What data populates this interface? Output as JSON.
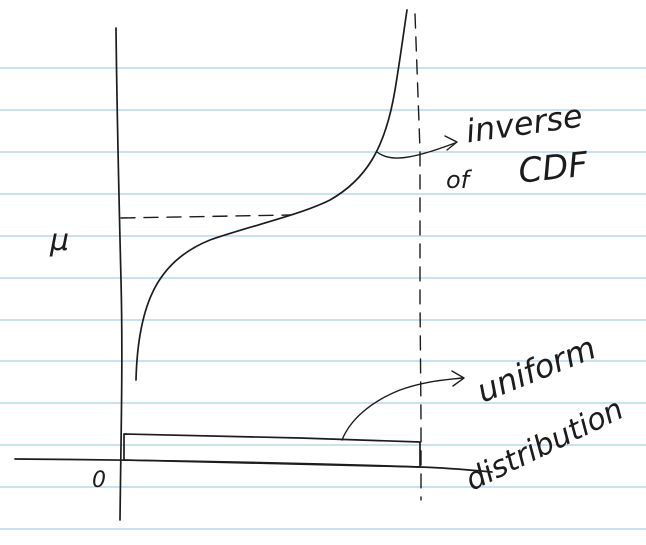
{
  "labels": {
    "y_mark": "μ",
    "origin": "0",
    "inverse_line1": "inverse",
    "inverse_line2": "of",
    "inverse_line3": "CDF",
    "uniform_line1": "uniform",
    "uniform_line2": "distribution"
  },
  "colors": {
    "paper": "#ffffff",
    "rule_lines": "#8fc6e8",
    "ink": "#1c1c1c"
  }
}
